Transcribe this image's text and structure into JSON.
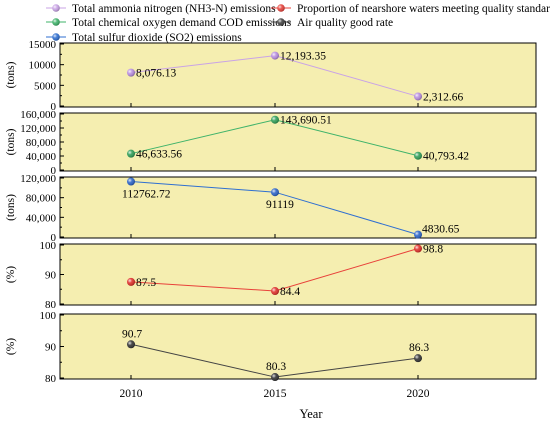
{
  "chart_data": {
    "type": "line",
    "x": [
      2010,
      2015,
      2020
    ],
    "xlabel": "Year",
    "x_ticks": [
      "2010",
      "2015",
      "2020"
    ],
    "legend_placement": "top",
    "legend": [
      {
        "label": "Total ammonia nitrogen (NH3-N) emissions",
        "color": "#c9a3e6"
      },
      {
        "label": "Proportion of nearshore waters meeting quality standards",
        "color": "#e8413a"
      },
      {
        "label": "Total chemical oxygen demand COD emissions",
        "color": "#3fb36a"
      },
      {
        "label": "Air quality good rate",
        "color": "#444444"
      },
      {
        "label": "Total sulfur dioxide (SO2) emissions",
        "color": "#2f6fd1"
      }
    ],
    "panels": [
      {
        "id": "nh3n",
        "ylabel": "(tons)",
        "ylim": [
          0,
          15000
        ],
        "y_ticks": [
          {
            "v": 0,
            "label": "0"
          },
          {
            "v": 5000,
            "label": "5000"
          },
          {
            "v": 10000,
            "label": "10000"
          },
          {
            "v": 15000,
            "label": "15000"
          }
        ],
        "line_color": "#c9a3e6",
        "marker_color": "#b98ee0",
        "values": [
          8076.13,
          12193.35,
          2312.66
        ],
        "labels": [
          "8,076.13",
          "12,193.35",
          "2,312.66"
        ],
        "label_pos": [
          "right",
          "right",
          "right"
        ]
      },
      {
        "id": "cod",
        "ylabel": "(tons)",
        "ylim": [
          0,
          160000
        ],
        "y_ticks": [
          {
            "v": 0,
            "label": "0"
          },
          {
            "v": 40000,
            "label": "40,000"
          },
          {
            "v": 80000,
            "label": "80,000"
          },
          {
            "v": 120000,
            "label": "120,000"
          },
          {
            "v": 160000,
            "label": "160,000"
          }
        ],
        "line_color": "#3fb36a",
        "marker_color": "#2f9e57",
        "values": [
          46633.56,
          143690.51,
          40793.42
        ],
        "labels": [
          "46,633.56",
          "143,690.51",
          "40,793.42"
        ],
        "label_pos": [
          "right",
          "right",
          "right"
        ]
      },
      {
        "id": "so2",
        "ylabel": "(tons)",
        "ylim": [
          0,
          120000
        ],
        "y_ticks": [
          {
            "v": 0,
            "label": "0"
          },
          {
            "v": 40000,
            "label": "40,000"
          },
          {
            "v": 80000,
            "label": "80,000"
          },
          {
            "v": 120000,
            "label": "120,000"
          }
        ],
        "line_color": "#2f6fd1",
        "marker_color": "#2c64c8",
        "values": [
          112762.72,
          91119,
          4830.65
        ],
        "labels": [
          "112762.72",
          "91119",
          "4830.65"
        ],
        "label_pos": [
          "below",
          "below",
          "right-up"
        ]
      },
      {
        "id": "nearshore",
        "ylabel": "(%)",
        "ylim": [
          80,
          100
        ],
        "y_ticks": [
          {
            "v": 80,
            "label": "80"
          },
          {
            "v": 90,
            "label": "90"
          },
          {
            "v": 100,
            "label": "100"
          }
        ],
        "line_color": "#e8413a",
        "marker_color": "#e0302a",
        "values": [
          87.5,
          84.4,
          98.8
        ],
        "labels": [
          "87.5",
          "84.4",
          "98.8"
        ],
        "label_pos": [
          "right",
          "right",
          "right"
        ]
      },
      {
        "id": "airquality",
        "ylabel": "(%)",
        "ylim": [
          80,
          100
        ],
        "y_ticks": [
          {
            "v": 80,
            "label": "80"
          },
          {
            "v": 90,
            "label": "90"
          },
          {
            "v": 100,
            "label": "100"
          }
        ],
        "line_color": "#444444",
        "marker_color": "#333333",
        "values": [
          90.7,
          80.3,
          86.3
        ],
        "labels": [
          "90.7",
          "80.3",
          "86.3"
        ],
        "label_pos": [
          "above",
          "above",
          "above"
        ]
      }
    ],
    "panel_background": "#f5eeb0",
    "grid": false
  }
}
